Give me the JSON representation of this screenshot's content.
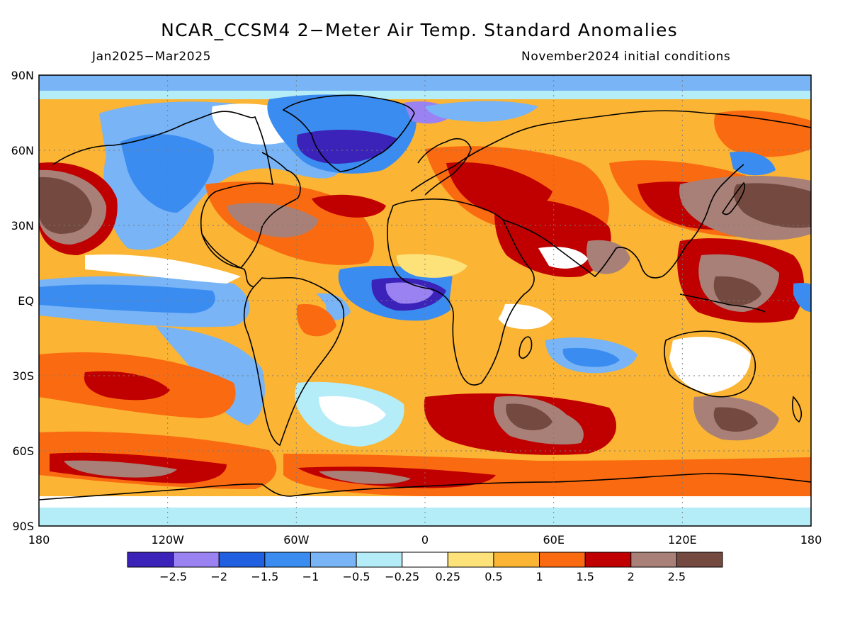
{
  "title": "NCAR_CCSM4 2−Meter Air Temp. Standard Anomalies",
  "period": "Jan2025−Mar2025",
  "initial_conditions": "November2024 initial conditions",
  "lat_labels": [
    "90N",
    "60N",
    "30N",
    "EQ",
    "30S",
    "60S",
    "90S"
  ],
  "lon_labels": [
    "180",
    "120W",
    "60W",
    "0",
    "60E",
    "120E",
    "180"
  ],
  "colorbar": {
    "colors": [
      "#3b22b8",
      "#9a82f2",
      "#2060e0",
      "#3a8cf0",
      "#78b4f6",
      "#b4ecf8",
      "#ffffff",
      "#fde27a",
      "#fbb433",
      "#fa6a10",
      "#c00000",
      "#a88078",
      "#744a40"
    ],
    "labels": [
      "−2.5",
      "−2",
      "−1.5",
      "−1",
      "−0.5",
      "−0.25",
      "0.25",
      "0.5",
      "1",
      "1.5",
      "2",
      "2.5"
    ]
  }
}
